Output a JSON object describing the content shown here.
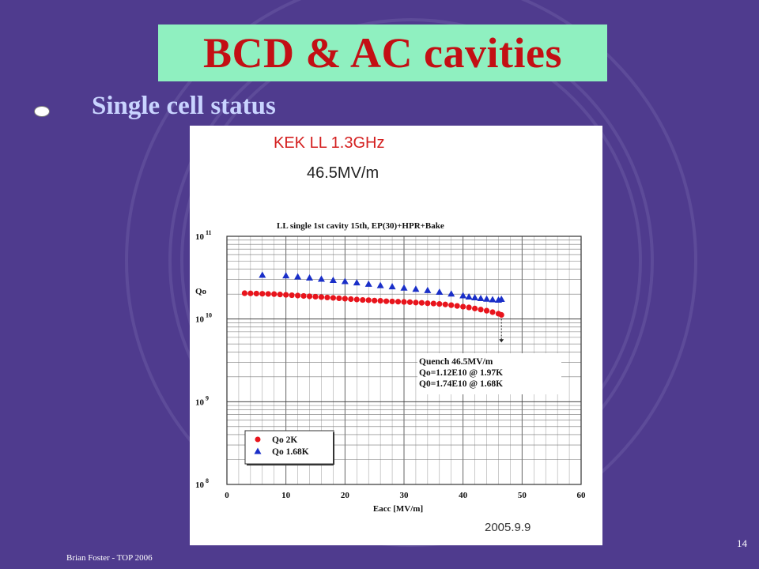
{
  "slide": {
    "title": "BCD & AC cavities",
    "bullet": "Single cell status",
    "footer": "Brian Foster - TOP 2006",
    "page_number": "14"
  },
  "colors": {
    "background": "#4f3b8e",
    "title_box": "#8ff0c0",
    "title_text": "#c30f14",
    "bullet_text": "#c9d4ff",
    "series_2k": "#e8141c",
    "series_168k": "#1a2fc8"
  },
  "figure": {
    "header_line1": "KEK LL 1.3GHz",
    "header_line2": "46.5MV/m",
    "date": "2005.9.9",
    "note_lines": [
      "Quench 46.5MV/m",
      "Qo=1.12E10 @ 1.97K",
      "Q0=1.74E10 @ 1.68K"
    ]
  },
  "chart_data": {
    "type": "scatter",
    "title": "LL single 1st cavity 15th, EP(30)+HPR+Bake",
    "xlabel": "Eacc [MV/m]",
    "ylabel": "Qo",
    "xlim": [
      0,
      60
    ],
    "ylim": [
      100000000.0,
      100000000000.0
    ],
    "yscale": "log",
    "grid": true,
    "legend_position": "bottom-left",
    "x_ticks": [
      "0",
      "10",
      "20",
      "30",
      "40",
      "50",
      "60"
    ],
    "y_ticks": [
      {
        "base": "10",
        "exp": "8",
        "value": 100000000.0
      },
      {
        "base": "10",
        "exp": "9",
        "value": 1000000000.0
      },
      {
        "base": "10",
        "exp": "10",
        "value": 10000000000.0
      },
      {
        "base": "10",
        "exp": "11",
        "value": 100000000000.0
      }
    ],
    "series": [
      {
        "name": "Qo 2K",
        "marker": "circle",
        "color": "#e8141c",
        "points": [
          [
            3,
            20500000000.0
          ],
          [
            4,
            20400000000.0
          ],
          [
            5,
            20300000000.0
          ],
          [
            6,
            20200000000.0
          ],
          [
            7,
            20100000000.0
          ],
          [
            8,
            20000000000.0
          ],
          [
            9,
            19800000000.0
          ],
          [
            10,
            19600000000.0
          ],
          [
            11,
            19400000000.0
          ],
          [
            12,
            19200000000.0
          ],
          [
            13,
            19000000000.0
          ],
          [
            14,
            18800000000.0
          ],
          [
            15,
            18600000000.0
          ],
          [
            16,
            18400000000.0
          ],
          [
            17,
            18200000000.0
          ],
          [
            18,
            18000000000.0
          ],
          [
            19,
            17800000000.0
          ],
          [
            20,
            17600000000.0
          ],
          [
            21,
            17400000000.0
          ],
          [
            22,
            17200000000.0
          ],
          [
            23,
            17000000000.0
          ],
          [
            24,
            16900000000.0
          ],
          [
            25,
            16700000000.0
          ],
          [
            26,
            16600000000.0
          ],
          [
            27,
            16400000000.0
          ],
          [
            28,
            16300000000.0
          ],
          [
            29,
            16200000000.0
          ],
          [
            30,
            16100000000.0
          ],
          [
            31,
            16000000000.0
          ],
          [
            32,
            15800000000.0
          ],
          [
            33,
            15700000000.0
          ],
          [
            34,
            15500000000.0
          ],
          [
            35,
            15400000000.0
          ],
          [
            36,
            15200000000.0
          ],
          [
            37,
            15000000000.0
          ],
          [
            38,
            14700000000.0
          ],
          [
            39,
            14400000000.0
          ],
          [
            40,
            14100000000.0
          ],
          [
            41,
            13800000000.0
          ],
          [
            42,
            13400000000.0
          ],
          [
            43,
            13000000000.0
          ],
          [
            44,
            12600000000.0
          ],
          [
            45,
            12100000000.0
          ],
          [
            46,
            11600000000.0
          ],
          [
            46.5,
            11200000000.0
          ]
        ]
      },
      {
        "name": "Qo 1.68K",
        "marker": "triangle",
        "color": "#1a2fc8",
        "points": [
          [
            6,
            34000000000.0
          ],
          [
            10,
            33500000000.0
          ],
          [
            12,
            32500000000.0
          ],
          [
            14,
            31500000000.0
          ],
          [
            16,
            30500000000.0
          ],
          [
            18,
            29500000000.0
          ],
          [
            20,
            28500000000.0
          ],
          [
            22,
            27500000000.0
          ],
          [
            24,
            26500000000.0
          ],
          [
            26,
            25500000000.0
          ],
          [
            28,
            24700000000.0
          ],
          [
            30,
            23800000000.0
          ],
          [
            32,
            23000000000.0
          ],
          [
            34,
            22200000000.0
          ],
          [
            36,
            21200000000.0
          ],
          [
            38,
            20200000000.0
          ],
          [
            40,
            19200000000.0
          ],
          [
            41,
            18600000000.0
          ],
          [
            42,
            18200000000.0
          ],
          [
            43,
            17800000000.0
          ],
          [
            44,
            17500000000.0
          ],
          [
            45,
            17200000000.0
          ],
          [
            46,
            17000000000.0
          ],
          [
            46.5,
            17400000000.0
          ]
        ]
      }
    ]
  }
}
